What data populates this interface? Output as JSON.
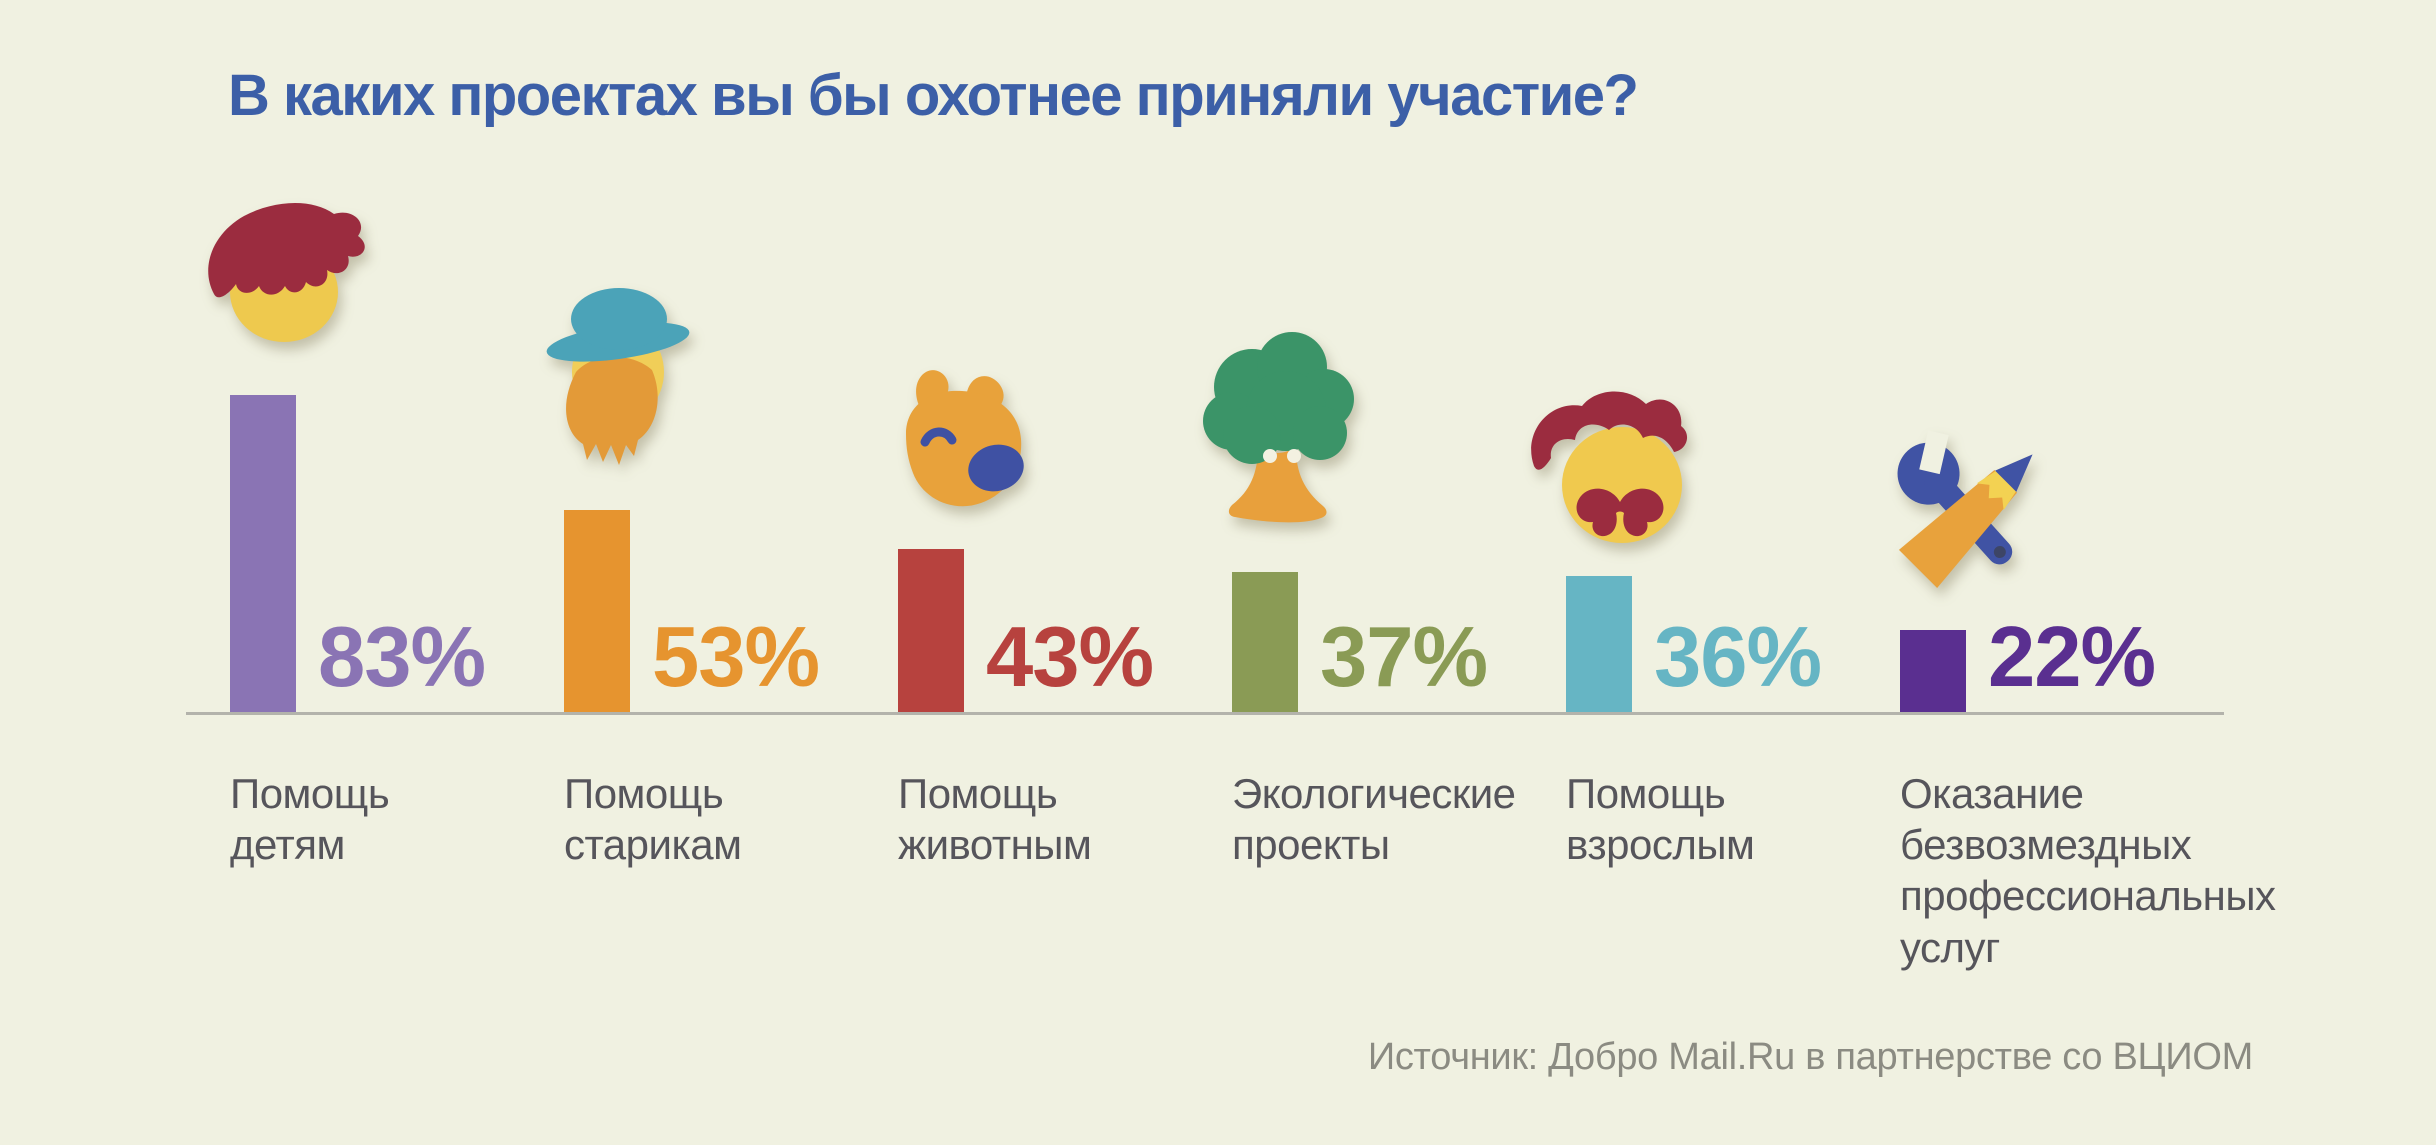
{
  "title": "В каких проектах вы бы охотнее приняли участие?",
  "source": "Источник: Добро Mail.Ru в партнерстве со ВЦИОМ",
  "colors": {
    "background": "#f0f1e1",
    "title": "#3c5fa7",
    "label_text": "#56555b",
    "source_text": "#8b8b82",
    "axis_line": "#b3b3ab"
  },
  "chart_data": {
    "type": "bar",
    "title": "В каких проектах вы бы охотнее приняли участие?",
    "unit": "%",
    "ylim": [
      0,
      100
    ],
    "grid": false,
    "legend": null,
    "value_label_position": "right-of-bar",
    "categories": [
      "Помощь детям",
      "Помощь старикам",
      "Помощь животным",
      "Экологические проекты",
      "Помощь взрослым",
      "Оказание безвозмездных профессиональных услуг"
    ],
    "category_lines": [
      [
        "Помощь",
        "детям"
      ],
      [
        "Помощь",
        "старикам"
      ],
      [
        "Помощь",
        "животным"
      ],
      [
        "Экологические",
        "проекты"
      ],
      [
        "Помощь",
        "взрослым"
      ],
      [
        "Оказание",
        "безвозмездных",
        "профессиональных",
        "услуг"
      ]
    ],
    "values": [
      83,
      53,
      43,
      37,
      36,
      22
    ],
    "value_labels": [
      "83%",
      "53%",
      "43%",
      "37%",
      "36%",
      "22%"
    ],
    "bar_colors": [
      "#8a74b4",
      "#e6942f",
      "#b7423e",
      "#8a9b55",
      "#66b5c4",
      "#5a2f90"
    ],
    "icons": [
      "child-head-icon",
      "elder-head-icon",
      "dog-head-icon",
      "tree-icon",
      "adult-head-icon",
      "wrench-pencil-icon"
    ],
    "source": "Источник: Добро Mail.Ru в партнерстве со ВЦИОМ"
  }
}
